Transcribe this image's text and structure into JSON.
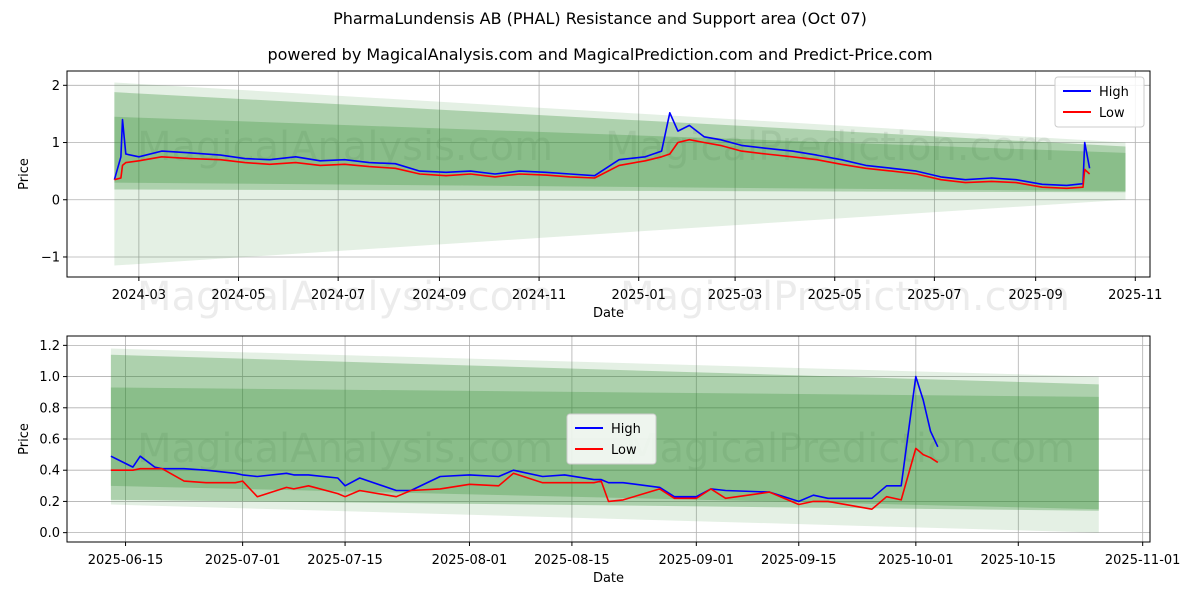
{
  "title": "PharmaLundensis AB (PHAL) Resistance and Support area (Oct 07)",
  "subtitle": "powered by MagicalAnalysis.com and MagicalPrediction.com and Predict-Price.com",
  "watermarks": [
    "MagicalAnalysis.com",
    "MagicalPrediction.com"
  ],
  "colors": {
    "high": "#0000ff",
    "low": "#ff0000",
    "band": "#2e8b2e",
    "axis": "#000000",
    "grid": "#b0b0b0"
  },
  "chart_data": [
    {
      "type": "line",
      "name": "full-history",
      "xlabel": "Date",
      "ylabel": "Price",
      "grid": true,
      "legend": "top-right",
      "xlim": [
        "2024-01-17",
        "2025-11-10"
      ],
      "ylim": [
        -1.35,
        2.25
      ],
      "xticks": [
        "2024-03-01",
        "2024-05-01",
        "2024-07-01",
        "2024-09-01",
        "2024-11-01",
        "2025-01-01",
        "2025-03-01",
        "2025-05-01",
        "2025-07-01",
        "2025-09-01",
        "2025-11-01"
      ],
      "xtick_labels": [
        "2024-03",
        "2024-05",
        "2024-07",
        "2024-09",
        "2024-11",
        "2025-01",
        "2025-03",
        "2025-05",
        "2025-07",
        "2025-09",
        "2025-11"
      ],
      "yticks": [
        -1,
        0,
        1,
        2
      ],
      "ytick_labels": [
        "−1",
        "0",
        "1",
        "2"
      ],
      "bands": [
        {
          "x": [
            "2024-02-15",
            "2025-10-26"
          ],
          "upper": [
            2.05,
            1.0
          ],
          "lower": [
            -1.15,
            0.0
          ],
          "opacity": 0.13
        },
        {
          "x": [
            "2024-02-15",
            "2025-10-26"
          ],
          "upper": [
            1.88,
            0.93
          ],
          "lower": [
            0.18,
            0.13
          ],
          "opacity": 0.3
        },
        {
          "x": [
            "2024-02-15",
            "2025-10-26"
          ],
          "upper": [
            1.45,
            0.82
          ],
          "lower": [
            0.3,
            0.15
          ],
          "opacity": 0.28
        }
      ],
      "series": [
        {
          "name": "High",
          "x": [
            "2024-02-15",
            "2024-02-19",
            "2024-02-20",
            "2024-02-22",
            "2024-03-01",
            "2024-03-15",
            "2024-04-01",
            "2024-04-20",
            "2024-05-05",
            "2024-05-20",
            "2024-06-05",
            "2024-06-20",
            "2024-07-05",
            "2024-07-20",
            "2024-08-05",
            "2024-08-20",
            "2024-09-05",
            "2024-09-20",
            "2024-10-05",
            "2024-10-20",
            "2024-11-05",
            "2024-11-20",
            "2024-12-05",
            "2024-12-20",
            "2025-01-05",
            "2025-01-15",
            "2025-01-20",
            "2025-01-25",
            "2025-02-01",
            "2025-02-10",
            "2025-02-20",
            "2025-03-05",
            "2025-03-20",
            "2025-04-05",
            "2025-04-20",
            "2025-05-05",
            "2025-05-20",
            "2025-06-05",
            "2025-06-20",
            "2025-07-05",
            "2025-07-20",
            "2025-08-05",
            "2025-08-20",
            "2025-09-05",
            "2025-09-20",
            "2025-09-30",
            "2025-10-01",
            "2025-10-04"
          ],
          "values": [
            0.35,
            0.75,
            1.4,
            0.8,
            0.75,
            0.85,
            0.82,
            0.78,
            0.72,
            0.7,
            0.75,
            0.68,
            0.7,
            0.65,
            0.63,
            0.5,
            0.48,
            0.5,
            0.45,
            0.5,
            0.48,
            0.45,
            0.42,
            0.7,
            0.75,
            0.85,
            1.52,
            1.2,
            1.3,
            1.1,
            1.05,
            0.95,
            0.9,
            0.85,
            0.78,
            0.7,
            0.6,
            0.55,
            0.5,
            0.4,
            0.35,
            0.38,
            0.35,
            0.27,
            0.25,
            0.28,
            1.0,
            0.55
          ]
        },
        {
          "name": "Low",
          "x": [
            "2024-02-15",
            "2024-02-19",
            "2024-02-20",
            "2024-02-22",
            "2024-03-01",
            "2024-03-15",
            "2024-04-01",
            "2024-04-20",
            "2024-05-05",
            "2024-05-20",
            "2024-06-05",
            "2024-06-20",
            "2024-07-05",
            "2024-07-20",
            "2024-08-05",
            "2024-08-20",
            "2024-09-05",
            "2024-09-20",
            "2024-10-05",
            "2024-10-20",
            "2024-11-05",
            "2024-11-20",
            "2024-12-05",
            "2024-12-20",
            "2025-01-05",
            "2025-01-15",
            "2025-01-20",
            "2025-01-25",
            "2025-02-01",
            "2025-02-10",
            "2025-02-20",
            "2025-03-05",
            "2025-03-20",
            "2025-04-05",
            "2025-04-20",
            "2025-05-05",
            "2025-05-20",
            "2025-06-05",
            "2025-06-20",
            "2025-07-05",
            "2025-07-20",
            "2025-08-05",
            "2025-08-20",
            "2025-09-05",
            "2025-09-20",
            "2025-09-30",
            "2025-10-01",
            "2025-10-04"
          ],
          "values": [
            0.35,
            0.38,
            0.6,
            0.65,
            0.68,
            0.75,
            0.72,
            0.7,
            0.65,
            0.62,
            0.65,
            0.6,
            0.62,
            0.58,
            0.55,
            0.45,
            0.42,
            0.45,
            0.4,
            0.45,
            0.43,
            0.4,
            0.38,
            0.6,
            0.68,
            0.75,
            0.8,
            1.0,
            1.05,
            1.0,
            0.95,
            0.85,
            0.8,
            0.75,
            0.7,
            0.62,
            0.55,
            0.5,
            0.45,
            0.35,
            0.3,
            0.32,
            0.3,
            0.22,
            0.2,
            0.22,
            0.53,
            0.45
          ]
        }
      ]
    },
    {
      "type": "line",
      "name": "recent-zoom",
      "xlabel": "Date",
      "ylabel": "Price",
      "grid": true,
      "legend": "center",
      "xlim": [
        "2025-06-07",
        "2025-11-02"
      ],
      "ylim": [
        -0.06,
        1.26
      ],
      "xticks": [
        "2025-06-15",
        "2025-07-01",
        "2025-07-15",
        "2025-08-01",
        "2025-08-15",
        "2025-09-01",
        "2025-09-15",
        "2025-10-01",
        "2025-10-15",
        "2025-11-01"
      ],
      "xtick_labels": [
        "2025-06-15",
        "2025-07-01",
        "2025-07-15",
        "2025-08-01",
        "2025-08-15",
        "2025-09-01",
        "2025-09-15",
        "2025-10-01",
        "2025-10-15",
        "2025-11-01"
      ],
      "yticks": [
        0.0,
        0.2,
        0.4,
        0.6,
        0.8,
        1.0,
        1.2
      ],
      "ytick_labels": [
        "0.0",
        "0.2",
        "0.4",
        "0.6",
        "0.8",
        "1.0",
        "1.2"
      ],
      "bands": [
        {
          "x": [
            "2025-06-13",
            "2025-10-26"
          ],
          "upper": [
            1.18,
            1.0
          ],
          "lower": [
            0.18,
            0.0
          ],
          "opacity": 0.13
        },
        {
          "x": [
            "2025-06-13",
            "2025-10-26"
          ],
          "upper": [
            1.14,
            0.95
          ],
          "lower": [
            0.21,
            0.14
          ],
          "opacity": 0.3
        },
        {
          "x": [
            "2025-06-13",
            "2025-10-26"
          ],
          "upper": [
            0.93,
            0.87
          ],
          "lower": [
            0.3,
            0.15
          ],
          "opacity": 0.28
        }
      ],
      "series": [
        {
          "name": "High",
          "x": [
            "2025-06-13",
            "2025-06-16",
            "2025-06-17",
            "2025-06-19",
            "2025-06-20",
            "2025-06-23",
            "2025-06-26",
            "2025-06-30",
            "2025-07-01",
            "2025-07-03",
            "2025-07-07",
            "2025-07-08",
            "2025-07-10",
            "2025-07-14",
            "2025-07-15",
            "2025-07-17",
            "2025-07-22",
            "2025-07-24",
            "2025-07-28",
            "2025-08-01",
            "2025-08-05",
            "2025-08-07",
            "2025-08-11",
            "2025-08-14",
            "2025-08-18",
            "2025-08-19",
            "2025-08-20",
            "2025-08-22",
            "2025-08-27",
            "2025-08-29",
            "2025-09-01",
            "2025-09-03",
            "2025-09-05",
            "2025-09-11",
            "2025-09-15",
            "2025-09-17",
            "2025-09-19",
            "2025-09-25",
            "2025-09-27",
            "2025-09-29",
            "2025-10-01",
            "2025-10-02",
            "2025-10-03",
            "2025-10-04"
          ],
          "values": [
            0.49,
            0.42,
            0.49,
            0.42,
            0.41,
            0.41,
            0.4,
            0.38,
            0.37,
            0.36,
            0.38,
            0.37,
            0.37,
            0.35,
            0.3,
            0.35,
            0.27,
            0.27,
            0.36,
            0.37,
            0.36,
            0.4,
            0.36,
            0.37,
            0.34,
            0.34,
            0.32,
            0.32,
            0.29,
            0.23,
            0.23,
            0.28,
            0.27,
            0.26,
            0.2,
            0.24,
            0.22,
            0.22,
            0.3,
            0.3,
            1.0,
            0.85,
            0.65,
            0.55
          ]
        },
        {
          "name": "Low",
          "x": [
            "2025-06-13",
            "2025-06-16",
            "2025-06-17",
            "2025-06-19",
            "2025-06-20",
            "2025-06-23",
            "2025-06-26",
            "2025-06-30",
            "2025-07-01",
            "2025-07-03",
            "2025-07-07",
            "2025-07-08",
            "2025-07-10",
            "2025-07-14",
            "2025-07-15",
            "2025-07-17",
            "2025-07-22",
            "2025-07-24",
            "2025-07-28",
            "2025-08-01",
            "2025-08-05",
            "2025-08-07",
            "2025-08-11",
            "2025-08-14",
            "2025-08-18",
            "2025-08-19",
            "2025-08-20",
            "2025-08-22",
            "2025-08-27",
            "2025-08-29",
            "2025-09-01",
            "2025-09-03",
            "2025-09-05",
            "2025-09-11",
            "2025-09-15",
            "2025-09-17",
            "2025-09-19",
            "2025-09-25",
            "2025-09-27",
            "2025-09-29",
            "2025-10-01",
            "2025-10-02",
            "2025-10-03",
            "2025-10-04"
          ],
          "values": [
            0.4,
            0.4,
            0.41,
            0.41,
            0.41,
            0.33,
            0.32,
            0.32,
            0.33,
            0.23,
            0.29,
            0.28,
            0.3,
            0.25,
            0.23,
            0.27,
            0.23,
            0.27,
            0.28,
            0.31,
            0.3,
            0.38,
            0.32,
            0.32,
            0.32,
            0.33,
            0.2,
            0.21,
            0.28,
            0.22,
            0.22,
            0.28,
            0.22,
            0.26,
            0.18,
            0.2,
            0.2,
            0.15,
            0.23,
            0.21,
            0.54,
            0.5,
            0.48,
            0.45
          ]
        }
      ]
    }
  ]
}
